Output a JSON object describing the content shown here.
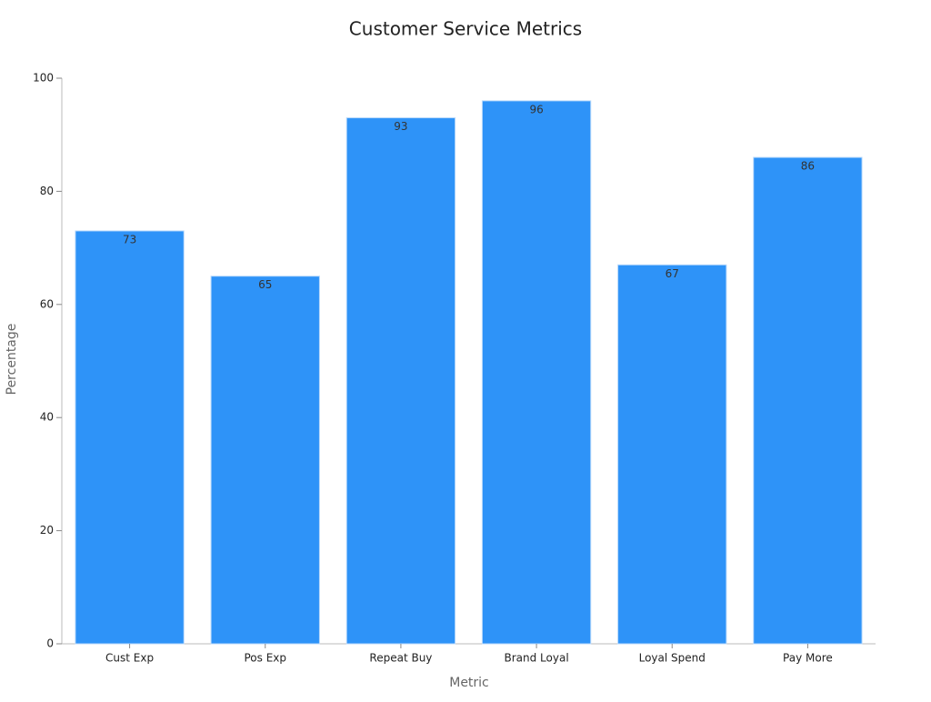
{
  "chart_data": {
    "type": "bar",
    "title": "Customer Service Metrics",
    "x_label": "Metric",
    "y_label": "Percentage",
    "categories": [
      "Cust Exp",
      "Pos Exp",
      "Repeat Buy",
      "Brand Loyal",
      "Loyal Spend",
      "Pay More"
    ],
    "values": [
      73,
      65,
      93,
      96,
      67,
      86
    ],
    "color": "#2e93f8",
    "ylim": [
      0,
      100
    ],
    "yticks": [
      0,
      20,
      40,
      60,
      80,
      100
    ],
    "grid": false
  }
}
